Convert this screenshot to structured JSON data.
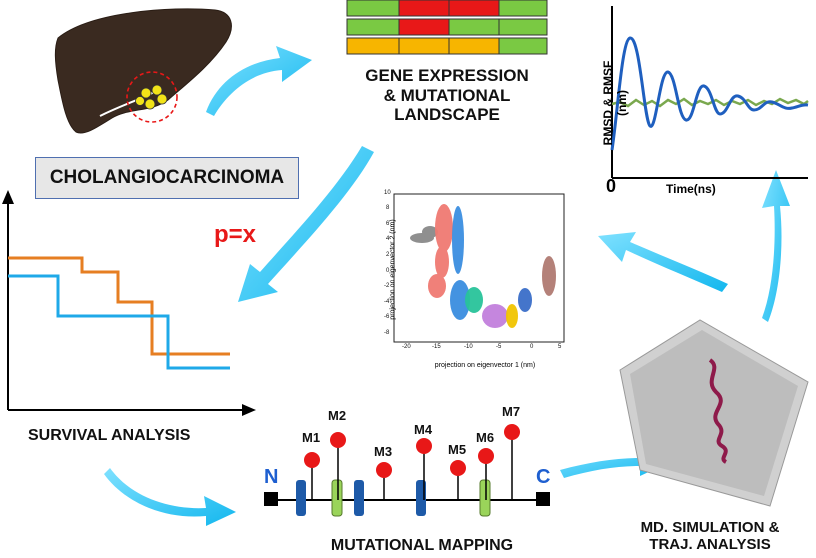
{
  "title_box": "CHOLANGIOCARCINOMA",
  "gene_section": {
    "label_lines": [
      "GENE EXPRESSION",
      "& MUTATIONAL",
      "LANDSCAPE"
    ]
  },
  "survival": {
    "label": "SURVIVAL ANALYSIS",
    "p_value": "p=x"
  },
  "mapping": {
    "label": "MUTATIONAL MAPPING",
    "n_terminal": "N",
    "c_terminal": "C",
    "mutations": [
      "M1",
      "M2",
      "M3",
      "M4",
      "M5",
      "M6",
      "M7"
    ]
  },
  "md": {
    "label_lines": [
      "MD. SIMULATION &",
      "TRAJ. ANALYSIS"
    ]
  },
  "rmsd_plot": {
    "ylabel": "RMSD & RMSF (nm)",
    "xlabel": "Time(ns)",
    "x_origin": "0"
  },
  "pca_plot": {
    "xlabel": "projection on eigenvector 1 (nm)",
    "ylabel": "projection on eigenvector 2 (nm)",
    "x_ticks": [
      "-20",
      "-15",
      "-10",
      "-5",
      "0",
      "5"
    ],
    "y_ticks": [
      "10",
      "8",
      "6",
      "4",
      "2",
      "0",
      "-2",
      "-4",
      "-6",
      "-8"
    ]
  },
  "colors": {
    "arrow": "#21c4f2",
    "red": "#e81818",
    "green": "#7ac943",
    "yellow": "#f7b500",
    "orange": "#e67e22",
    "blue": "#1fa9e8",
    "liver": "#3a2a20",
    "domain_blue": "#1e5aa8",
    "domain_green": "#9ad45a"
  }
}
